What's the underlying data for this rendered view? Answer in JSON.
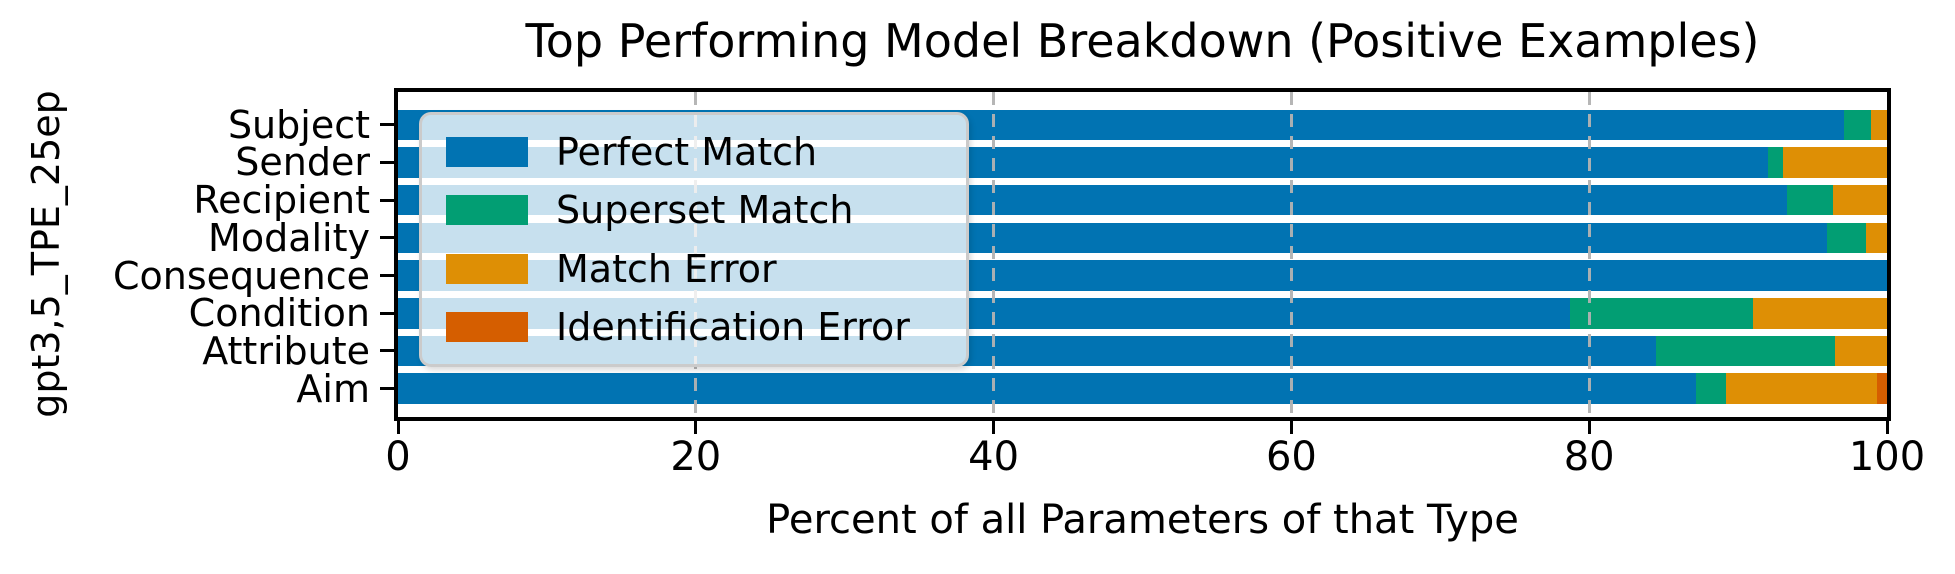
{
  "title": "Top Performing Model Breakdown (Positive Examples)",
  "y_axis_label": "gpt3,5_TPE_25ep",
  "x_axis_label": "Percent of all Parameters of that Type",
  "x_ticks": [
    0,
    20,
    40,
    60,
    80,
    100
  ],
  "colors": {
    "perfect_match": "#0173b2",
    "superset_match": "#029e73",
    "match_error": "#de8f05",
    "identification_error": "#d55e00",
    "gridline": "#b2b2b2"
  },
  "legend": {
    "items": [
      {
        "label": "Perfect Match",
        "color": "#0173b2"
      },
      {
        "label": "Superset Match",
        "color": "#029e73"
      },
      {
        "label": "Match Error",
        "color": "#de8f05"
      },
      {
        "label": "Identification Error",
        "color": "#d55e00"
      }
    ]
  },
  "chart_data": {
    "type": "bar",
    "orientation": "horizontal",
    "stacked": true,
    "title": "Top Performing Model Breakdown (Positive Examples)",
    "xlabel": "Percent of all Parameters of that Type",
    "ylabel": "gpt3,5_TPE_25ep",
    "xlim": [
      0,
      100
    ],
    "grid": {
      "axis": "x",
      "style": "dashed",
      "ticks": [
        20,
        40,
        60,
        80
      ]
    },
    "legend_position": "upper left",
    "categories": [
      "Subject",
      "Sender",
      "Recipient",
      "Modality",
      "Consequence",
      "Condition",
      "Attribute",
      "Aim"
    ],
    "series": [
      {
        "name": "Perfect Match",
        "color": "#0173b2",
        "values": [
          97.1,
          92.0,
          93.3,
          96.0,
          100.0,
          78.7,
          84.5,
          87.2
        ]
      },
      {
        "name": "Superset Match",
        "color": "#029e73",
        "values": [
          1.8,
          1.0,
          3.1,
          2.6,
          0.0,
          12.3,
          12.0,
          2.0
        ]
      },
      {
        "name": "Match Error",
        "color": "#de8f05",
        "values": [
          1.1,
          7.0,
          3.6,
          1.4,
          0.0,
          9.0,
          3.5,
          10.1
        ]
      },
      {
        "name": "Identification Error",
        "color": "#d55e00",
        "values": [
          0.0,
          0.0,
          0.0,
          0.0,
          0.0,
          0.0,
          0.0,
          0.7
        ]
      }
    ]
  }
}
